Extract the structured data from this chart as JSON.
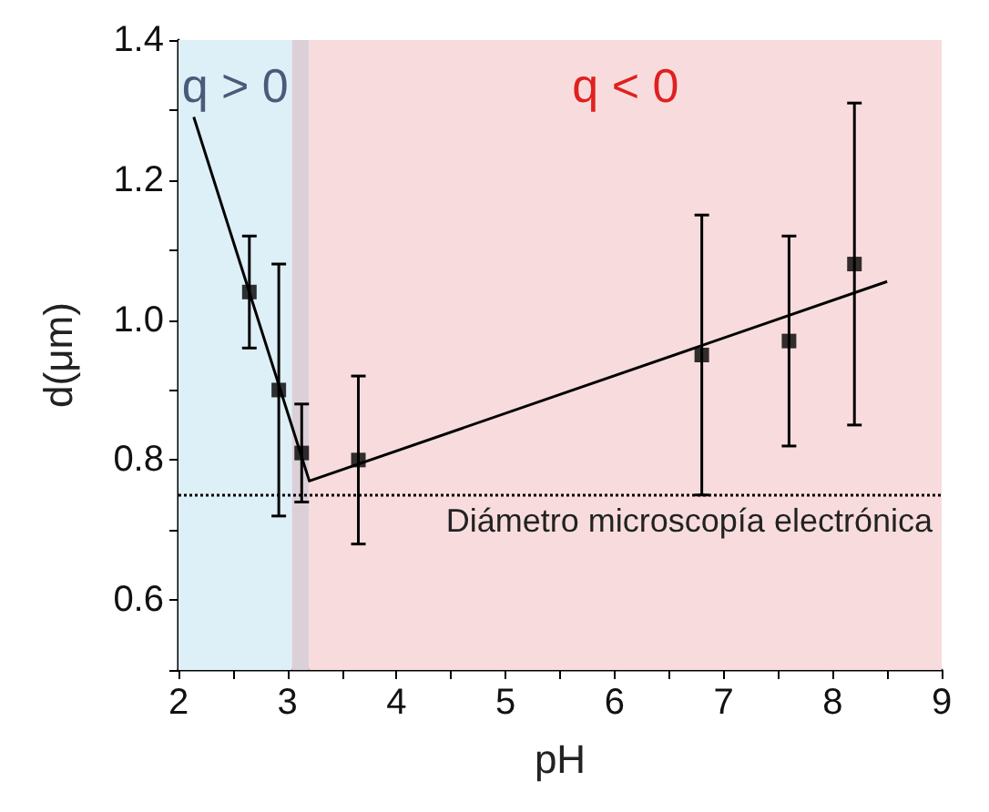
{
  "chart_data": {
    "type": "scatter",
    "xlabel": "pH",
    "ylabel": "d(μm)",
    "xlim": [
      2,
      9
    ],
    "ylim": [
      0.5,
      1.4
    ],
    "xticks": [
      2,
      {
        "value": 2.5,
        "label": null
      },
      3,
      {
        "value": 3.5,
        "label": null
      },
      4,
      {
        "value": 4.5,
        "label": null
      },
      5,
      {
        "value": 5.5,
        "label": null
      },
      6,
      {
        "value": 6.5,
        "label": null
      },
      7,
      {
        "value": 7.5,
        "label": null
      },
      8,
      {
        "value": 8.5,
        "label": null
      },
      9
    ],
    "yticks": [
      {
        "value": 0.5,
        "label": null
      },
      0.6,
      {
        "value": 0.7,
        "label": null
      },
      0.8,
      {
        "value": 0.9,
        "label": null
      },
      {
        "value": 1,
        "label": "1.0"
      },
      {
        "value": 1.1,
        "label": null
      },
      1.2,
      {
        "value": 1.3,
        "label": null
      },
      1.4
    ],
    "grid": false,
    "marker": "square",
    "series": [
      {
        "color": "#000000",
        "x": [
          2.65,
          2.92,
          3.13,
          3.65,
          6.8,
          7.6,
          8.2
        ],
        "values": [
          1.04,
          0.9,
          0.81,
          0.8,
          0.95,
          0.97,
          1.08
        ],
        "errors": [
          [
            0.96,
            1.12
          ],
          [
            0.72,
            1.08
          ],
          [
            0.74,
            0.88
          ],
          [
            0.68,
            0.92
          ],
          [
            0.75,
            1.15
          ],
          [
            0.82,
            1.12
          ],
          [
            0.85,
            1.31
          ]
        ]
      },
      {
        "type": "line",
        "color": "#000000",
        "marker": "none",
        "line_style": "solid",
        "x": [
          2.14,
          3.2,
          8.5
        ],
        "values": [
          1.29,
          0.77,
          1.055
        ]
      }
    ],
    "ref_lines": [
      {
        "axis": "y",
        "value": 0.75,
        "label": "Diámetro microscopía electrónica",
        "color": "#000000",
        "line_style": "dotted"
      }
    ],
    "bands": [
      {
        "axis": "x",
        "from": 2,
        "to": 3.04,
        "label": "q > 0",
        "color": "#ddf0f7"
      },
      {
        "axis": "x",
        "from": 3.04,
        "to": 3.2,
        "label": null,
        "color": "#dcd0d8"
      },
      {
        "axis": "x",
        "from": 3.2,
        "to": 9,
        "label": "q < 0",
        "color": "#f8dcdd"
      }
    ]
  }
}
